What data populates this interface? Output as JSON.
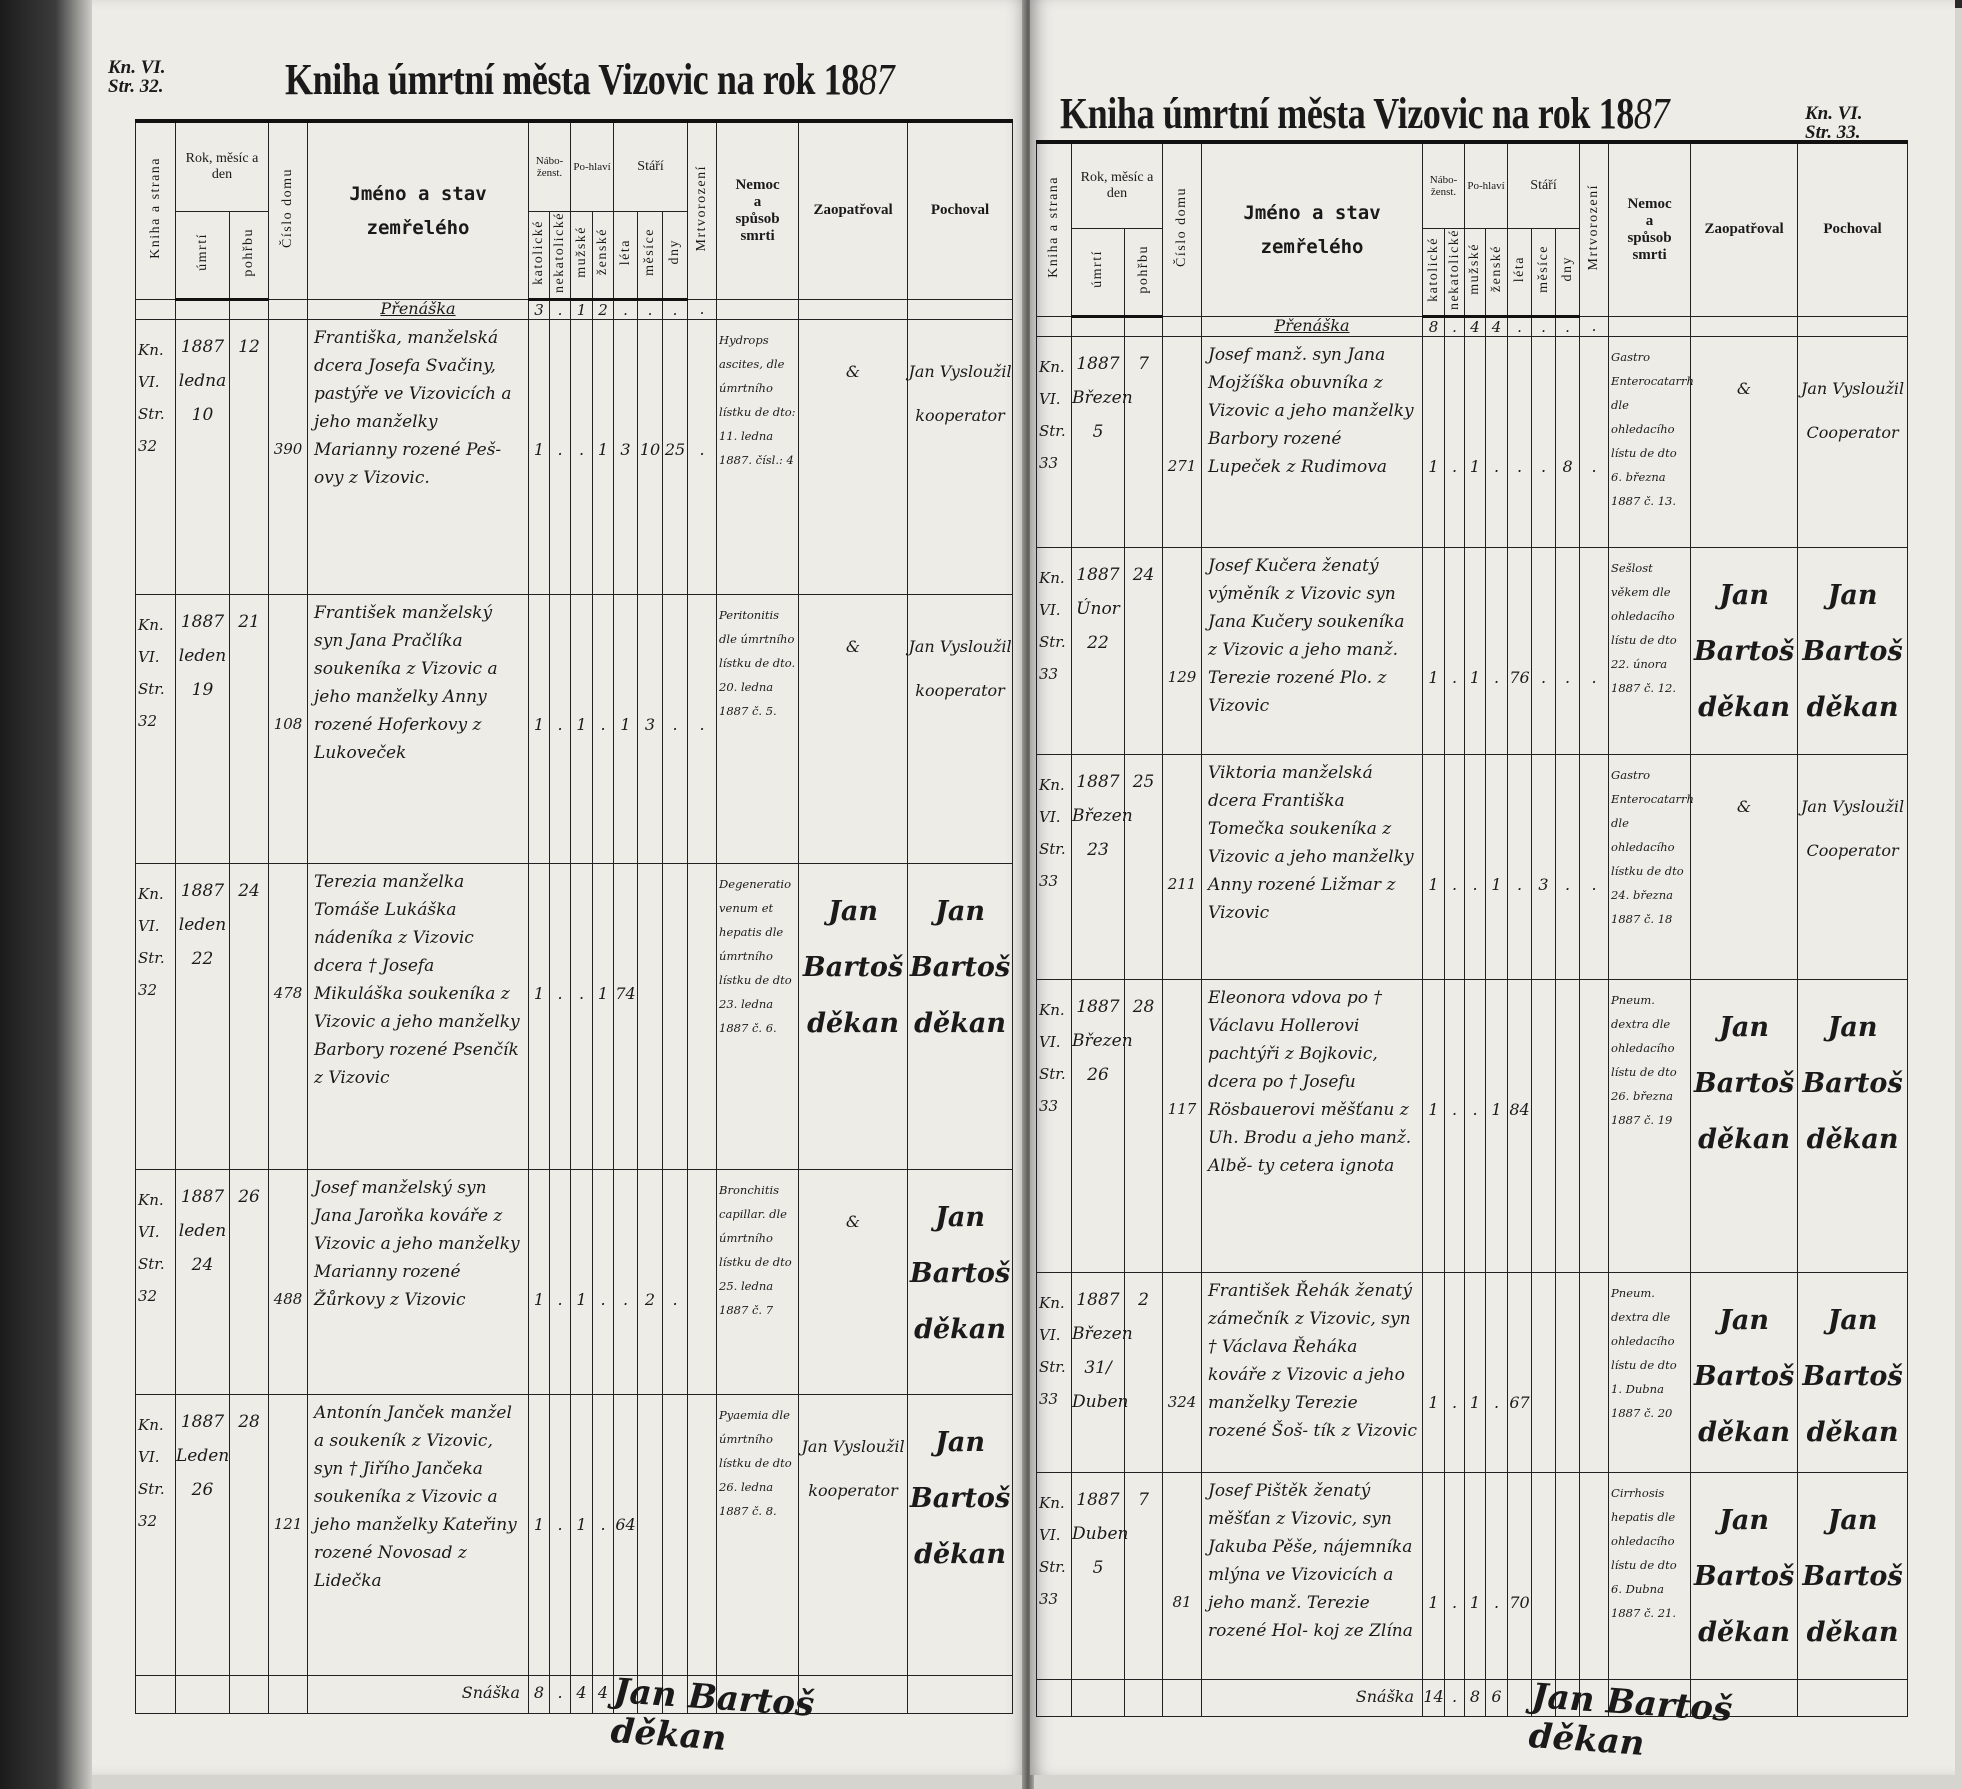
{
  "header": {
    "kniha_a_strana": "Kniha a strana",
    "rok_mesic_den": "Rok, měsíc a den",
    "umrti": "úmrtí",
    "pohrbu": "pohřbu",
    "cislo_domu": "Číslo domu",
    "jmeno_line1": "Jméno a stav",
    "jmeno_line2": "zemřelého",
    "nabozenstvi": "Nábo-ženst.",
    "katolicke": "katolické",
    "nekatolicke": "nekatolické",
    "pohlavi": "Po-hlaví",
    "muzske": "mužské",
    "zenske": "ženské",
    "stari": "Stáří",
    "leta": "léta",
    "mesice": "měsíce",
    "dny": "dny",
    "mrtvorozeni": "Mrtvorození",
    "nemoc_line1": "Nemoc",
    "nemoc_line2": "a",
    "nemoc_line3": "spůsob",
    "nemoc_line4": "smrti",
    "zaopatroval": "Zaopatřoval",
    "pochoval": "Pochoval"
  },
  "pages": [
    {
      "title_printed": "Kniha úmrtní města Vizovic na rok 18",
      "title_year_handwritten": "87",
      "ref_line1": "Kn. VI.",
      "ref_line2": "Str. 32.",
      "carry_over": {
        "label": "Přenáška",
        "katolicke": "3",
        "nekatolicke": ".",
        "muzske": "1",
        "zenske": "2",
        "leta": ".",
        "mesice": ".",
        "dny": ".",
        "mrtvorozeni": "."
      },
      "entries": [
        {
          "kniha": "Kn. VI. Str. 32",
          "umrti": "1887 ledna 10",
          "pohrbu": "12",
          "cislo_domu": "390",
          "jmeno": "Františka, manželská dcera Josefa Svačiny, pastýře ve Vizovicích a jeho manželky Marianny rozené Peš-ovy z Vizovic.",
          "katolicke": "1",
          "nekatolicke": ".",
          "muzske": ".",
          "zenske": "1",
          "leta": "3",
          "mesice": "10",
          "dny": "25",
          "mrtvorozeni": ".",
          "nemoc": "Hydrops ascites, dle úmrtního lístku de dto: 11. ledna 1887. čísl.: 4",
          "zaopatroval": "&",
          "pochoval": "Jan Vysloužil kooperator"
        },
        {
          "kniha": "Kn. VI. Str. 32",
          "umrti": "1887 leden 19",
          "pohrbu": "21",
          "cislo_domu": "108",
          "jmeno": "František manželský syn Jana Pračlíka soukeníka z Vizovic a jeho manželky Anny rozené Hoferkovy z Lukoveček",
          "katolicke": "1",
          "nekatolicke": ".",
          "muzske": "1",
          "zenske": ".",
          "leta": "1",
          "mesice": "3",
          "dny": ".",
          "mrtvorozeni": ".",
          "nemoc": "Peritonitis dle úmrtního lístku de dto. 20. ledna 1887 č. 5.",
          "zaopatroval": "&",
          "pochoval": "Jan Vysloužil kooperator"
        },
        {
          "kniha": "Kn. VI. Str. 32",
          "umrti": "1887 leden 22",
          "pohrbu": "24",
          "cislo_domu": "478",
          "jmeno": "Terezia manželka Tomáše Lukáška nádeníka z Vizovic dcera † Josefa Mikuláška soukeníka z Vizovic a jeho manželky Barbory rozené Psenčík z Vizovic",
          "katolicke": "1",
          "nekatolicke": ".",
          "muzske": ".",
          "zenske": "1",
          "leta": "74",
          "mesice": "",
          "dny": "",
          "mrtvorozeni": "",
          "nemoc": "Degeneratio venum et hepatis dle úmrtního lístku de dto 23. ledna 1887 č. 6.",
          "zaopatroval": "Jan Bartoš děkan",
          "pochoval": "Jan Bartoš děkan"
        },
        {
          "kniha": "Kn. VI. Str. 32",
          "umrti": "1887 leden 24",
          "pohrbu": "26",
          "cislo_domu": "488",
          "jmeno": "Josef manželský syn Jana Jaroňka kováře z Vizovic a jeho manželky Marianny rozené Žůrkovy z Vizovic",
          "katolicke": "1",
          "nekatolicke": ".",
          "muzske": "1",
          "zenske": ".",
          "leta": ".",
          "mesice": "2",
          "dny": ".",
          "mrtvorozeni": "",
          "nemoc": "Bronchitis capillar. dle úmrtního lístku de dto 25. ledna 1887 č. 7",
          "zaopatroval": "&",
          "pochoval": "Jan Bartoš děkan"
        },
        {
          "kniha": "Kn. VI. Str. 32",
          "umrti": "1887 Leden 26",
          "pohrbu": "28",
          "cislo_domu": "121",
          "jmeno": "Antonín Janček manžel a soukeník z Vizovic, syn † Jiřího Jančeka soukeníka z Vizovic a jeho manželky Kateřiny rozené Novosad z Lidečka",
          "katolicke": "1",
          "nekatolicke": ".",
          "muzske": "1",
          "zenske": ".",
          "leta": "64",
          "mesice": "",
          "dny": "",
          "mrtvorozeni": "",
          "nemoc": "Pyaemia dle úmrtního lístku de dto 26. ledna 1887 č. 8.",
          "zaopatroval": "Jan Vysloužil kooperator",
          "pochoval": "Jan Bartoš děkan"
        }
      ],
      "sum": {
        "label": "Snáška",
        "katolicke": "8",
        "nekatolicke": ".",
        "muzske": "4",
        "zenske": "4"
      },
      "signature": "Jan Bartoš děkan"
    },
    {
      "title_printed": "Kniha úmrtní města Vizovic na rok 18",
      "title_year_handwritten": "87",
      "ref_line1": "Kn. VI.",
      "ref_line2": "Str. 33.",
      "carry_over": {
        "label": "Přenáška",
        "katolicke": "8",
        "nekatolicke": ".",
        "muzske": "4",
        "zenske": "4",
        "leta": ".",
        "mesice": ".",
        "dny": ".",
        "mrtvorozeni": "."
      },
      "entries": [
        {
          "kniha": "Kn. VI. Str. 33",
          "umrti": "1887 Březen 5",
          "pohrbu": "7",
          "cislo_domu": "271",
          "jmeno": "Josef manž. syn Jana Mojžíška obuvníka z Vizovic a jeho manželky Barbory rozené Lupeček z Rudimova",
          "katolicke": "1",
          "nekatolicke": ".",
          "muzske": "1",
          "zenske": ".",
          "leta": ".",
          "mesice": ".",
          "dny": "8",
          "mrtvorozeni": ".",
          "nemoc": "Gastro Enterocatarrh dle ohledacího lístu de dto 6. března 1887 č. 13.",
          "zaopatroval": "&",
          "pochoval": "Jan Vysloužil Cooperator"
        },
        {
          "kniha": "Kn. VI. Str. 33",
          "umrti": "1887 Únor 22",
          "pohrbu": "24",
          "cislo_domu": "129",
          "jmeno": "Josef Kučera ženatý výměník z Vizovic syn Jana Kučery soukeníka z Vizovic a jeho manž. Terezie rozené Plo. z Vizovic",
          "katolicke": "1",
          "nekatolicke": ".",
          "muzske": "1",
          "zenske": ".",
          "leta": "76",
          "mesice": ".",
          "dny": ".",
          "mrtvorozeni": ".",
          "nemoc": "Sešlost věkem dle ohledacího lístu de dto 22. února 1887 č. 12.",
          "zaopatroval": "Jan Bartoš děkan",
          "pochoval": "Jan Bartoš děkan"
        },
        {
          "kniha": "Kn. VI. Str. 33",
          "umrti": "1887 Březen 23",
          "pohrbu": "25",
          "cislo_domu": "211",
          "jmeno": "Viktoria manželská dcera Františka Tomečka soukeníka z Vizovic a jeho manželky Anny rozené Ližmar z Vizovic",
          "katolicke": "1",
          "nekatolicke": ".",
          "muzske": ".",
          "zenske": "1",
          "leta": ".",
          "mesice": "3",
          "dny": ".",
          "mrtvorozeni": ".",
          "nemoc": "Gastro Enterocatarrh dle ohledacího lístku de dto 24. března 1887 č. 18",
          "zaopatroval": "&",
          "pochoval": "Jan Vysloužil Cooperator"
        },
        {
          "kniha": "Kn. VI. Str. 33",
          "umrti": "1887 Březen 26",
          "pohrbu": "28",
          "cislo_domu": "117",
          "jmeno": "Eleonora vdova po † Václavu Hollerovi pachtýři z Bojkovic, dcera po † Josefu Rösbauerovi měšťanu z Uh. Brodu a jeho manž. Albě- ty cetera ignota",
          "katolicke": "1",
          "nekatolicke": ".",
          "muzske": ".",
          "zenske": "1",
          "leta": "84",
          "mesice": "",
          "dny": "",
          "mrtvorozeni": "",
          "nemoc": "Pneum. dextra dle ohledacího lístu de dto 26. března 1887 č. 19",
          "zaopatroval": "Jan Bartoš děkan",
          "pochoval": "Jan Bartoš děkan"
        },
        {
          "kniha": "Kn. VI. Str. 33",
          "umrti": "1887 Březen 31/ Duben",
          "pohrbu": "2",
          "cislo_domu": "324",
          "jmeno": "František Řehák ženatý zámečník z Vizovic, syn † Václava Řeháka kováře z Vizovic a jeho manželky Terezie rozené Šoš- tík z Vizovic",
          "katolicke": "1",
          "nekatolicke": ".",
          "muzske": "1",
          "zenske": ".",
          "leta": "67",
          "mesice": "",
          "dny": "",
          "mrtvorozeni": "",
          "nemoc": "Pneum. dextra dle ohledacího lístu de dto 1. Dubna 1887 č. 20",
          "zaopatroval": "Jan Bartoš děkan",
          "pochoval": "Jan Bartoš děkan"
        },
        {
          "kniha": "Kn. VI. Str. 33",
          "umrti": "1887 Duben 5",
          "pohrbu": "7",
          "cislo_domu": "81",
          "jmeno": "Josef Pištěk ženatý měšťan z Vizovic, syn Jakuba Pěše, nájemníka mlýna ve Vizovicích a jeho manž. Terezie rozené Hol- koj ze Zlína",
          "katolicke": "1",
          "nekatolicke": ".",
          "muzske": "1",
          "zenske": ".",
          "leta": "70",
          "mesice": "",
          "dny": "",
          "mrtvorozeni": "",
          "nemoc": "Cirrhosis hepatis dle ohledacího lístu de dto 6. Dubna 1887 č. 21.",
          "zaopatroval": "Jan Bartoš děkan",
          "pochoval": "Jan Bartoš děkan"
        }
      ],
      "sum": {
        "label": "Snáška",
        "katolicke": "14",
        "nekatolicke": ".",
        "muzske": "8",
        "zenske": "6"
      },
      "signature": "Jan Bartoš děkan"
    }
  ]
}
